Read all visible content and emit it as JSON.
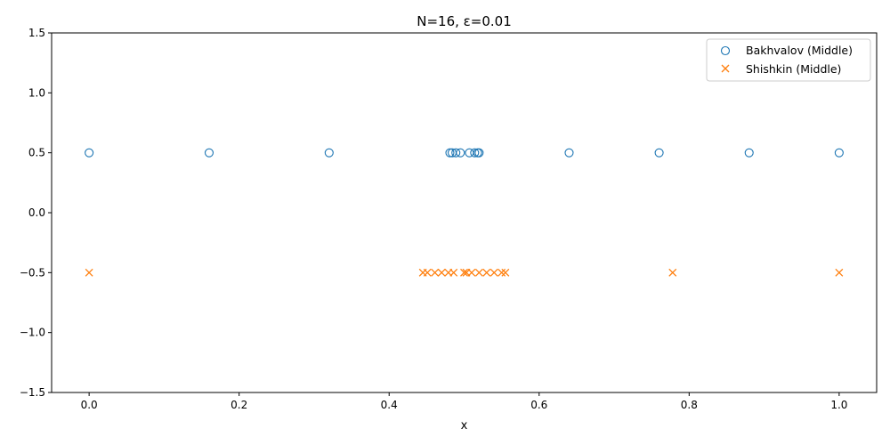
{
  "chart_data": {
    "type": "scatter",
    "title": "N=16, ε=0.01",
    "xlabel": "x",
    "ylabel": "",
    "xlim": [
      -0.05,
      1.05
    ],
    "ylim": [
      -1.5,
      1.5
    ],
    "xticks": [
      0.0,
      0.2,
      0.4,
      0.6,
      0.8,
      1.0
    ],
    "xtick_labels": [
      "0.0",
      "0.2",
      "0.4",
      "0.6",
      "0.8",
      "1.0"
    ],
    "yticks": [
      1.5,
      1.0,
      0.5,
      0.0,
      -0.5,
      -1.0,
      -1.5
    ],
    "ytick_labels": [
      "1.5",
      "1.0",
      "0.5",
      "0.0",
      "−0.5",
      "−1.0",
      "−1.5"
    ],
    "grid": false,
    "legend_position": "top-right",
    "series": [
      {
        "name": "Bakhvalov (Middle)",
        "marker": "circle",
        "color": "#1f77b4",
        "x": [
          0.0,
          0.16,
          0.32,
          0.481,
          0.484,
          0.489,
          0.495,
          0.507,
          0.514,
          0.518,
          0.52,
          0.64,
          0.76,
          0.88,
          1.0
        ],
        "y": [
          0.5,
          0.5,
          0.5,
          0.5,
          0.5,
          0.5,
          0.5,
          0.5,
          0.5,
          0.5,
          0.5,
          0.5,
          0.5,
          0.5,
          0.5
        ]
      },
      {
        "name": "Shishkin (Middle)",
        "marker": "x",
        "color": "#ff7f0e",
        "x": [
          0.0,
          0.445,
          0.451,
          0.461,
          0.47,
          0.479,
          0.486,
          0.5,
          0.503,
          0.51,
          0.52,
          0.53,
          0.54,
          0.55,
          0.555,
          0.778,
          1.0
        ],
        "y": [
          -0.5,
          -0.5,
          -0.5,
          -0.5,
          -0.5,
          -0.5,
          -0.5,
          -0.5,
          -0.5,
          -0.5,
          -0.5,
          -0.5,
          -0.5,
          -0.5,
          -0.5,
          -0.5,
          -0.5
        ]
      }
    ]
  }
}
